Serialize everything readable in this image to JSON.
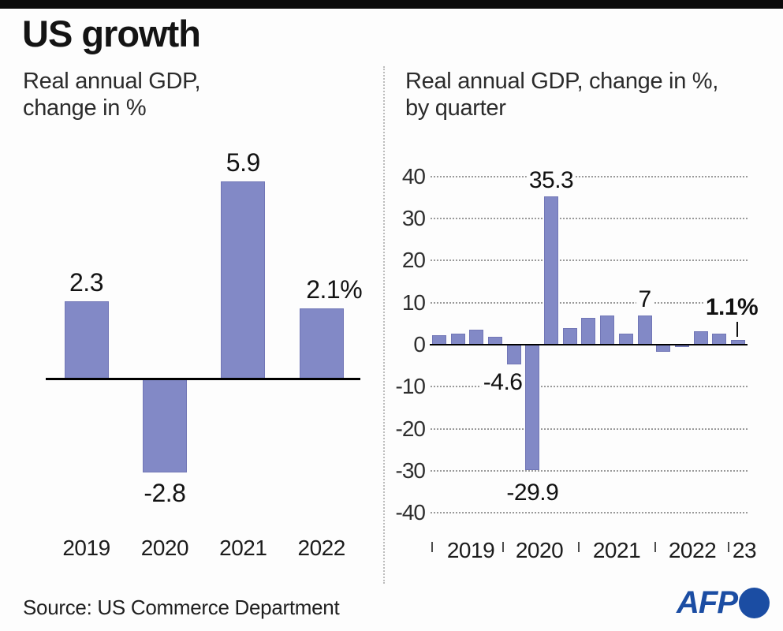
{
  "header": {
    "title": "US growth"
  },
  "left_chart": {
    "subtitle_line1": "Real annual GDP,",
    "subtitle_line2": "change in %"
  },
  "right_chart": {
    "subtitle_line1": "Real annual GDP, change in %,",
    "subtitle_line2": "by quarter"
  },
  "footer": {
    "source": "Source: US Commerce Department",
    "logo_text": "AFP"
  },
  "colors": {
    "bar": "#8289c6",
    "bar_border": "#7176b6",
    "axis": "#000000",
    "grid": "#9a9a9a",
    "afp_blue": "#1b4da3",
    "top_bar": "#0a0a0a"
  },
  "chart_data": [
    {
      "type": "bar",
      "title": "Real annual GDP, change in %",
      "categories": [
        "2019",
        "2020",
        "2021",
        "2022"
      ],
      "values": [
        2.3,
        -2.8,
        5.9,
        2.1
      ],
      "value_labels": [
        "2.3",
        "-2.8",
        "5.9",
        "2.1%"
      ],
      "ylim": [
        -3.5,
        6.5
      ],
      "grid": false,
      "legend": null
    },
    {
      "type": "bar",
      "title": "Real annual GDP, change in %, by quarter",
      "x": [
        "2019 Q1",
        "2019 Q2",
        "2019 Q3",
        "2019 Q4",
        "2020 Q1",
        "2020 Q2",
        "2020 Q3",
        "2020 Q4",
        "2021 Q1",
        "2021 Q2",
        "2021 Q3",
        "2021 Q4",
        "2022 Q1",
        "2022 Q2",
        "2022 Q3",
        "2022 Q4",
        "2023 Q1"
      ],
      "values": [
        2.2,
        2.7,
        3.6,
        1.8,
        -4.6,
        -29.9,
        35.3,
        3.9,
        6.3,
        7.0,
        2.7,
        7.0,
        -1.6,
        -0.6,
        3.2,
        2.6,
        1.1
      ],
      "annotations": [
        {
          "x": "2020 Q1",
          "text": "-4.6"
        },
        {
          "x": "2020 Q2",
          "text": "-29.9"
        },
        {
          "x": "2020 Q3",
          "text": "35.3"
        },
        {
          "x": "2021 Q4",
          "text": "7"
        },
        {
          "x": "2023 Q1",
          "text": "1.1%",
          "bold": true,
          "pointer": true
        }
      ],
      "ylim": [
        -40,
        40
      ],
      "yticks": [
        40,
        30,
        20,
        10,
        0,
        -10,
        -20,
        -30,
        -40
      ],
      "x_axis_year_labels": [
        "2019",
        "2020",
        "2021",
        "2022",
        "23"
      ],
      "grid": "horizontal-dotted",
      "legend": null
    }
  ]
}
